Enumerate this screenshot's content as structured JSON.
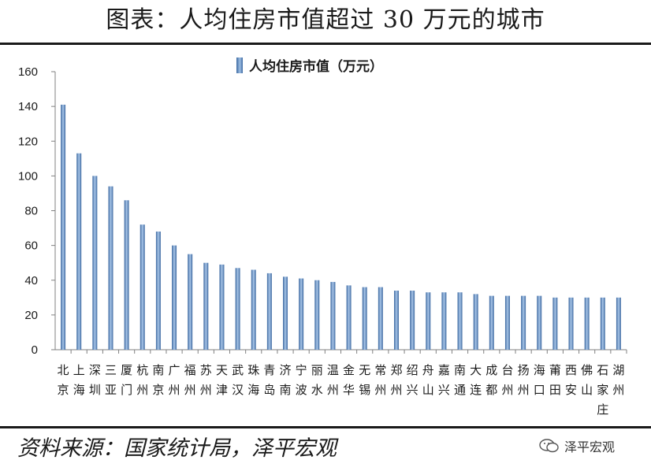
{
  "header": {
    "title": "图表：人均住房市值超过 30 万元的城市"
  },
  "footer": {
    "source": "资料来源：国家统计局，泽平宏观",
    "watermark": "泽平宏观",
    "watermark_icon": "wechat-icon"
  },
  "chart_data": {
    "type": "bar",
    "ylim": [
      0,
      160
    ],
    "yticks": [
      0,
      20,
      40,
      60,
      80,
      100,
      120,
      140,
      160
    ],
    "legend": {
      "label": "人均住房市值（万元）",
      "position": "top-center"
    },
    "grid": false,
    "bar_color": "#4f7fbf",
    "series": [
      {
        "name": "人均住房市值（万元）",
        "values": [
          141,
          113,
          100,
          94,
          86,
          72,
          68,
          60,
          55,
          50,
          49,
          47,
          46,
          44,
          42,
          41,
          40,
          39,
          37,
          36,
          36,
          34,
          34,
          33,
          33,
          33,
          32,
          31,
          31,
          31,
          31,
          30,
          30,
          30,
          30,
          30
        ]
      }
    ],
    "categories": [
      [
        "北",
        "京"
      ],
      [
        "上",
        "海"
      ],
      [
        "深",
        "圳"
      ],
      [
        "三",
        "亚"
      ],
      [
        "厦",
        "门"
      ],
      [
        "杭",
        "州"
      ],
      [
        "南",
        "京"
      ],
      [
        "广",
        "州"
      ],
      [
        "福",
        "州"
      ],
      [
        "苏",
        "州"
      ],
      [
        "天",
        "津"
      ],
      [
        "武",
        "汉"
      ],
      [
        "珠",
        "海"
      ],
      [
        "青",
        "岛"
      ],
      [
        "济",
        "南"
      ],
      [
        "宁",
        "波"
      ],
      [
        "丽",
        "水"
      ],
      [
        "温",
        "州"
      ],
      [
        "金",
        "华"
      ],
      [
        "无",
        "锡"
      ],
      [
        "常",
        "州"
      ],
      [
        "郑",
        "州"
      ],
      [
        "绍",
        "兴"
      ],
      [
        "舟",
        "山"
      ],
      [
        "嘉",
        "兴"
      ],
      [
        "南",
        "通"
      ],
      [
        "大",
        "连"
      ],
      [
        "成",
        "都"
      ],
      [
        "台",
        "州"
      ],
      [
        "扬",
        "州"
      ],
      [
        "海",
        "口"
      ],
      [
        "莆",
        "田"
      ],
      [
        "西",
        "安"
      ],
      [
        "佛",
        "山"
      ],
      [
        "石",
        "家",
        "庄"
      ],
      [
        "湖",
        "州"
      ]
    ]
  }
}
